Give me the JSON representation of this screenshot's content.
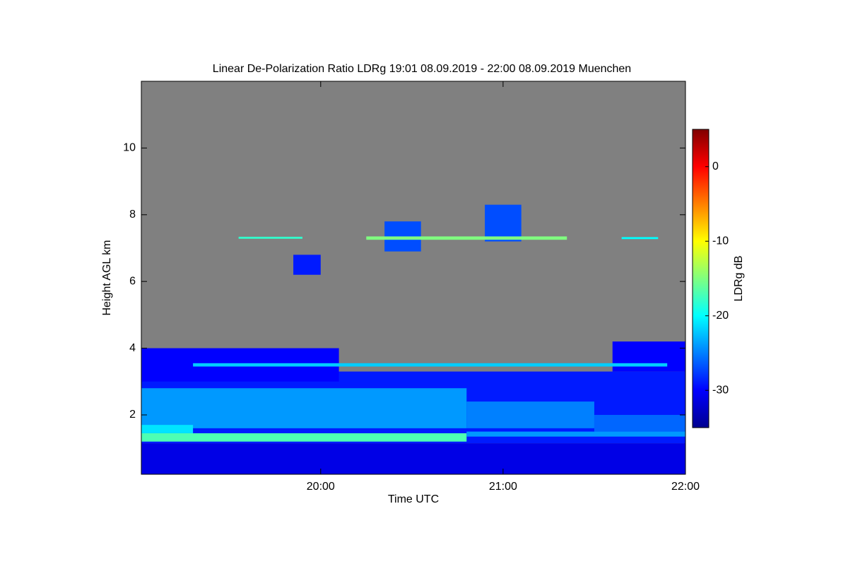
{
  "chart_data": {
    "type": "heatmap",
    "title": "Linear De-Polarization Ratio LDRg   19:01 08.09.2019 - 22:00 08.09.2019 Muenchen",
    "x_label": "Time UTC",
    "y_label": "Height AGL km",
    "colorbar_label": "LDRg dB",
    "xlim": [
      19.0167,
      22
    ],
    "xticks": [
      {
        "value": 20,
        "label": "20:00"
      },
      {
        "value": 21,
        "label": "21:00"
      },
      {
        "value": 22,
        "label": "22:00"
      }
    ],
    "ylim": [
      0.22,
      12
    ],
    "yticks": [
      2,
      4,
      6,
      8,
      10
    ],
    "clim": [
      -35,
      5
    ],
    "cticks": [
      0,
      -10,
      -20,
      -30
    ],
    "colormap": "jet",
    "no_data_color": "#808080",
    "layers": [
      {
        "x": [
          19.0167,
          22
        ],
        "y": [
          0.22,
          1.15
        ],
        "value": -31
      },
      {
        "x": [
          19.0167,
          22
        ],
        "y": [
          1.15,
          3.3
        ],
        "value": -29
      },
      {
        "x": [
          19.0167,
          20.1
        ],
        "y": [
          3.0,
          4.0
        ],
        "value": -30
      },
      {
        "x": [
          21.6,
          22
        ],
        "y": [
          3.3,
          4.2
        ],
        "value": -30
      },
      {
        "x": [
          19.0167,
          20.8
        ],
        "y": [
          1.6,
          2.8
        ],
        "value": -24
      },
      {
        "x": [
          20.8,
          21.5
        ],
        "y": [
          1.6,
          2.4
        ],
        "value": -25
      },
      {
        "x": [
          21.5,
          22
        ],
        "y": [
          1.5,
          2.0
        ],
        "value": -26
      },
      {
        "x": [
          19.0167,
          19.3
        ],
        "y": [
          1.45,
          1.7
        ],
        "value": -21
      },
      {
        "x": [
          19.0167,
          20.8
        ],
        "y": [
          1.2,
          1.45
        ],
        "value": -17
      },
      {
        "x": [
          20.8,
          22
        ],
        "y": [
          1.35,
          1.5
        ],
        "value": -24
      },
      {
        "x": [
          19.3,
          21.9
        ],
        "y": [
          3.45,
          3.55
        ],
        "value": -22
      },
      {
        "x": [
          20.35,
          20.55
        ],
        "y": [
          6.9,
          7.8
        ],
        "value": -27
      },
      {
        "x": [
          20.9,
          21.1
        ],
        "y": [
          7.2,
          8.3
        ],
        "value": -27
      },
      {
        "x": [
          19.85,
          20.0
        ],
        "y": [
          6.2,
          6.8
        ],
        "value": -29
      },
      {
        "x": [
          19.55,
          19.9
        ],
        "y": [
          7.28,
          7.34
        ],
        "value": -18
      },
      {
        "x": [
          20.25,
          21.35
        ],
        "y": [
          7.25,
          7.35
        ],
        "value": -15
      },
      {
        "x": [
          21.65,
          21.85
        ],
        "y": [
          7.27,
          7.33
        ],
        "value": -20
      }
    ]
  }
}
